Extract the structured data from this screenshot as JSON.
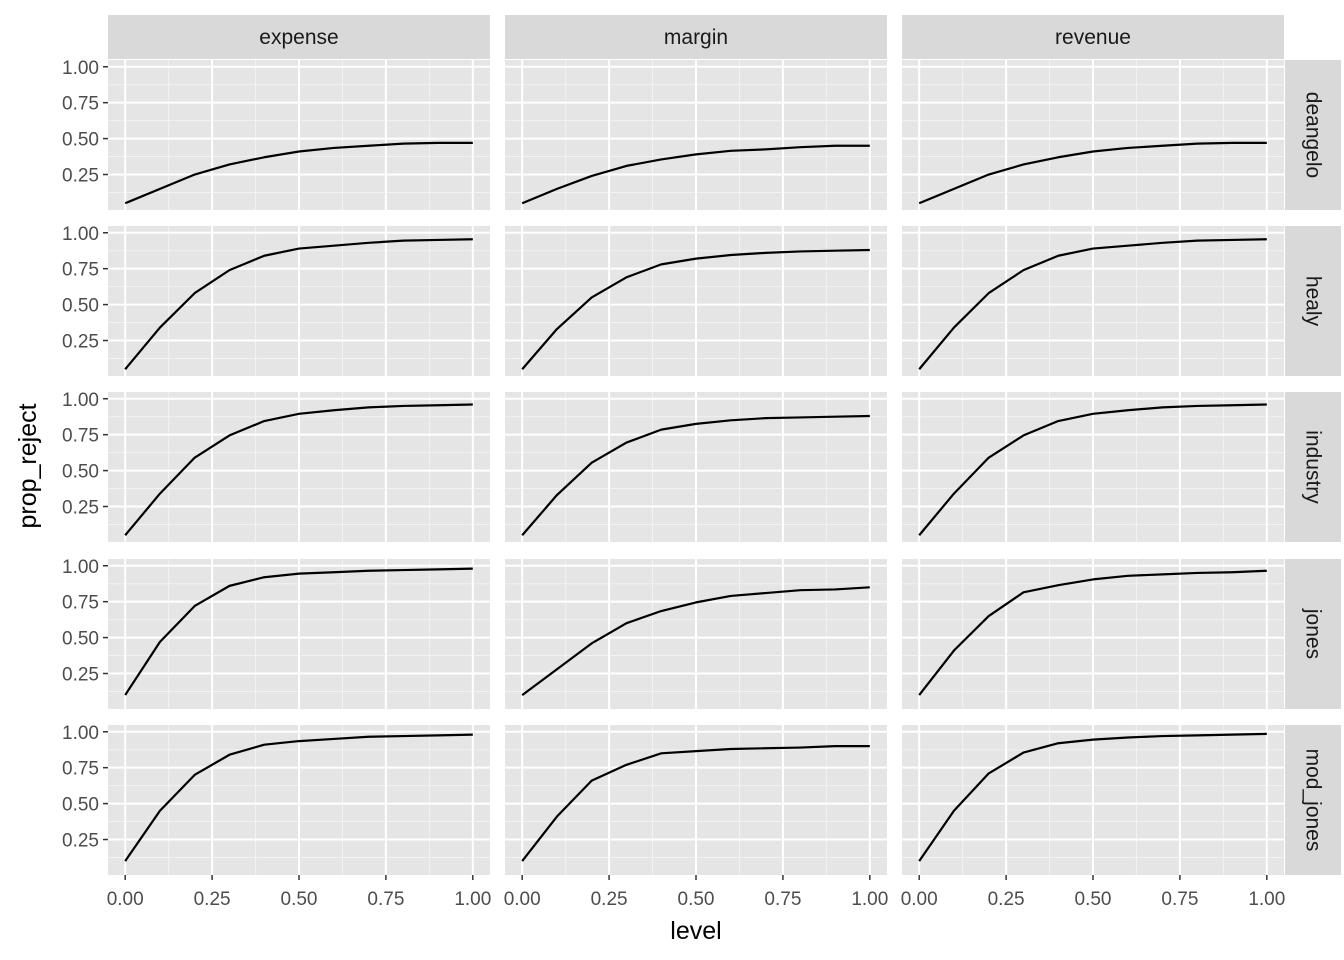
{
  "chart_data": {
    "type": "line",
    "facet_columns": [
      "expense",
      "margin",
      "revenue"
    ],
    "facet_rows": [
      "deangelo",
      "healy",
      "industry",
      "jones",
      "mod_jones"
    ],
    "xlabel": "level",
    "ylabel": "prop_reject",
    "xlim": [
      0,
      1
    ],
    "ylim": [
      0.05,
      1.0
    ],
    "x_ticks": [
      0.0,
      0.25,
      0.5,
      0.75,
      1.0
    ],
    "x_tick_labels": [
      "0.00",
      "0.25",
      "0.50",
      "0.75",
      "1.00"
    ],
    "y_ticks": [
      0.25,
      0.5,
      0.75,
      1.0
    ],
    "y_tick_labels": [
      "0.25",
      "0.50",
      "0.75",
      "1.00"
    ],
    "x": [
      0.0,
      0.1,
      0.2,
      0.3,
      0.4,
      0.5,
      0.6,
      0.7,
      0.8,
      0.9,
      1.0
    ],
    "grid": true,
    "panel_background": "#e5e5e5",
    "strip_background": "#d9d9d9",
    "line_color": "#000000",
    "panels": [
      {
        "row": "deangelo",
        "col": "expense",
        "values": [
          0.05,
          0.15,
          0.25,
          0.32,
          0.37,
          0.41,
          0.435,
          0.45,
          0.465,
          0.47,
          0.47
        ]
      },
      {
        "row": "deangelo",
        "col": "margin",
        "values": [
          0.05,
          0.15,
          0.24,
          0.31,
          0.355,
          0.39,
          0.415,
          0.425,
          0.44,
          0.45,
          0.45
        ]
      },
      {
        "row": "deangelo",
        "col": "revenue",
        "values": [
          0.05,
          0.15,
          0.25,
          0.32,
          0.37,
          0.41,
          0.435,
          0.45,
          0.465,
          0.47,
          0.47
        ]
      },
      {
        "row": "healy",
        "col": "expense",
        "values": [
          0.05,
          0.34,
          0.58,
          0.74,
          0.84,
          0.89,
          0.91,
          0.93,
          0.945,
          0.95,
          0.955
        ]
      },
      {
        "row": "healy",
        "col": "margin",
        "values": [
          0.05,
          0.33,
          0.55,
          0.69,
          0.78,
          0.82,
          0.845,
          0.86,
          0.87,
          0.875,
          0.88
        ]
      },
      {
        "row": "healy",
        "col": "revenue",
        "values": [
          0.05,
          0.34,
          0.58,
          0.74,
          0.84,
          0.89,
          0.91,
          0.93,
          0.945,
          0.95,
          0.955
        ]
      },
      {
        "row": "industry",
        "col": "expense",
        "values": [
          0.05,
          0.34,
          0.59,
          0.745,
          0.845,
          0.895,
          0.92,
          0.94,
          0.95,
          0.955,
          0.96
        ]
      },
      {
        "row": "industry",
        "col": "margin",
        "values": [
          0.05,
          0.33,
          0.555,
          0.695,
          0.785,
          0.825,
          0.85,
          0.865,
          0.87,
          0.875,
          0.88
        ]
      },
      {
        "row": "industry",
        "col": "revenue",
        "values": [
          0.05,
          0.34,
          0.59,
          0.745,
          0.845,
          0.895,
          0.92,
          0.94,
          0.95,
          0.955,
          0.96
        ]
      },
      {
        "row": "jones",
        "col": "expense",
        "values": [
          0.1,
          0.47,
          0.72,
          0.86,
          0.92,
          0.945,
          0.955,
          0.965,
          0.97,
          0.975,
          0.98
        ]
      },
      {
        "row": "jones",
        "col": "margin",
        "values": [
          0.1,
          0.28,
          0.46,
          0.6,
          0.685,
          0.745,
          0.79,
          0.81,
          0.83,
          0.835,
          0.85
        ]
      },
      {
        "row": "jones",
        "col": "revenue",
        "values": [
          0.1,
          0.41,
          0.65,
          0.815,
          0.865,
          0.905,
          0.93,
          0.94,
          0.95,
          0.955,
          0.965
        ]
      },
      {
        "row": "mod_jones",
        "col": "expense",
        "values": [
          0.1,
          0.45,
          0.7,
          0.84,
          0.91,
          0.935,
          0.95,
          0.965,
          0.97,
          0.975,
          0.98
        ]
      },
      {
        "row": "mod_jones",
        "col": "margin",
        "values": [
          0.1,
          0.41,
          0.66,
          0.77,
          0.85,
          0.865,
          0.88,
          0.885,
          0.89,
          0.9,
          0.9
        ]
      },
      {
        "row": "mod_jones",
        "col": "revenue",
        "values": [
          0.1,
          0.45,
          0.71,
          0.855,
          0.92,
          0.945,
          0.96,
          0.97,
          0.975,
          0.98,
          0.985
        ]
      }
    ]
  }
}
